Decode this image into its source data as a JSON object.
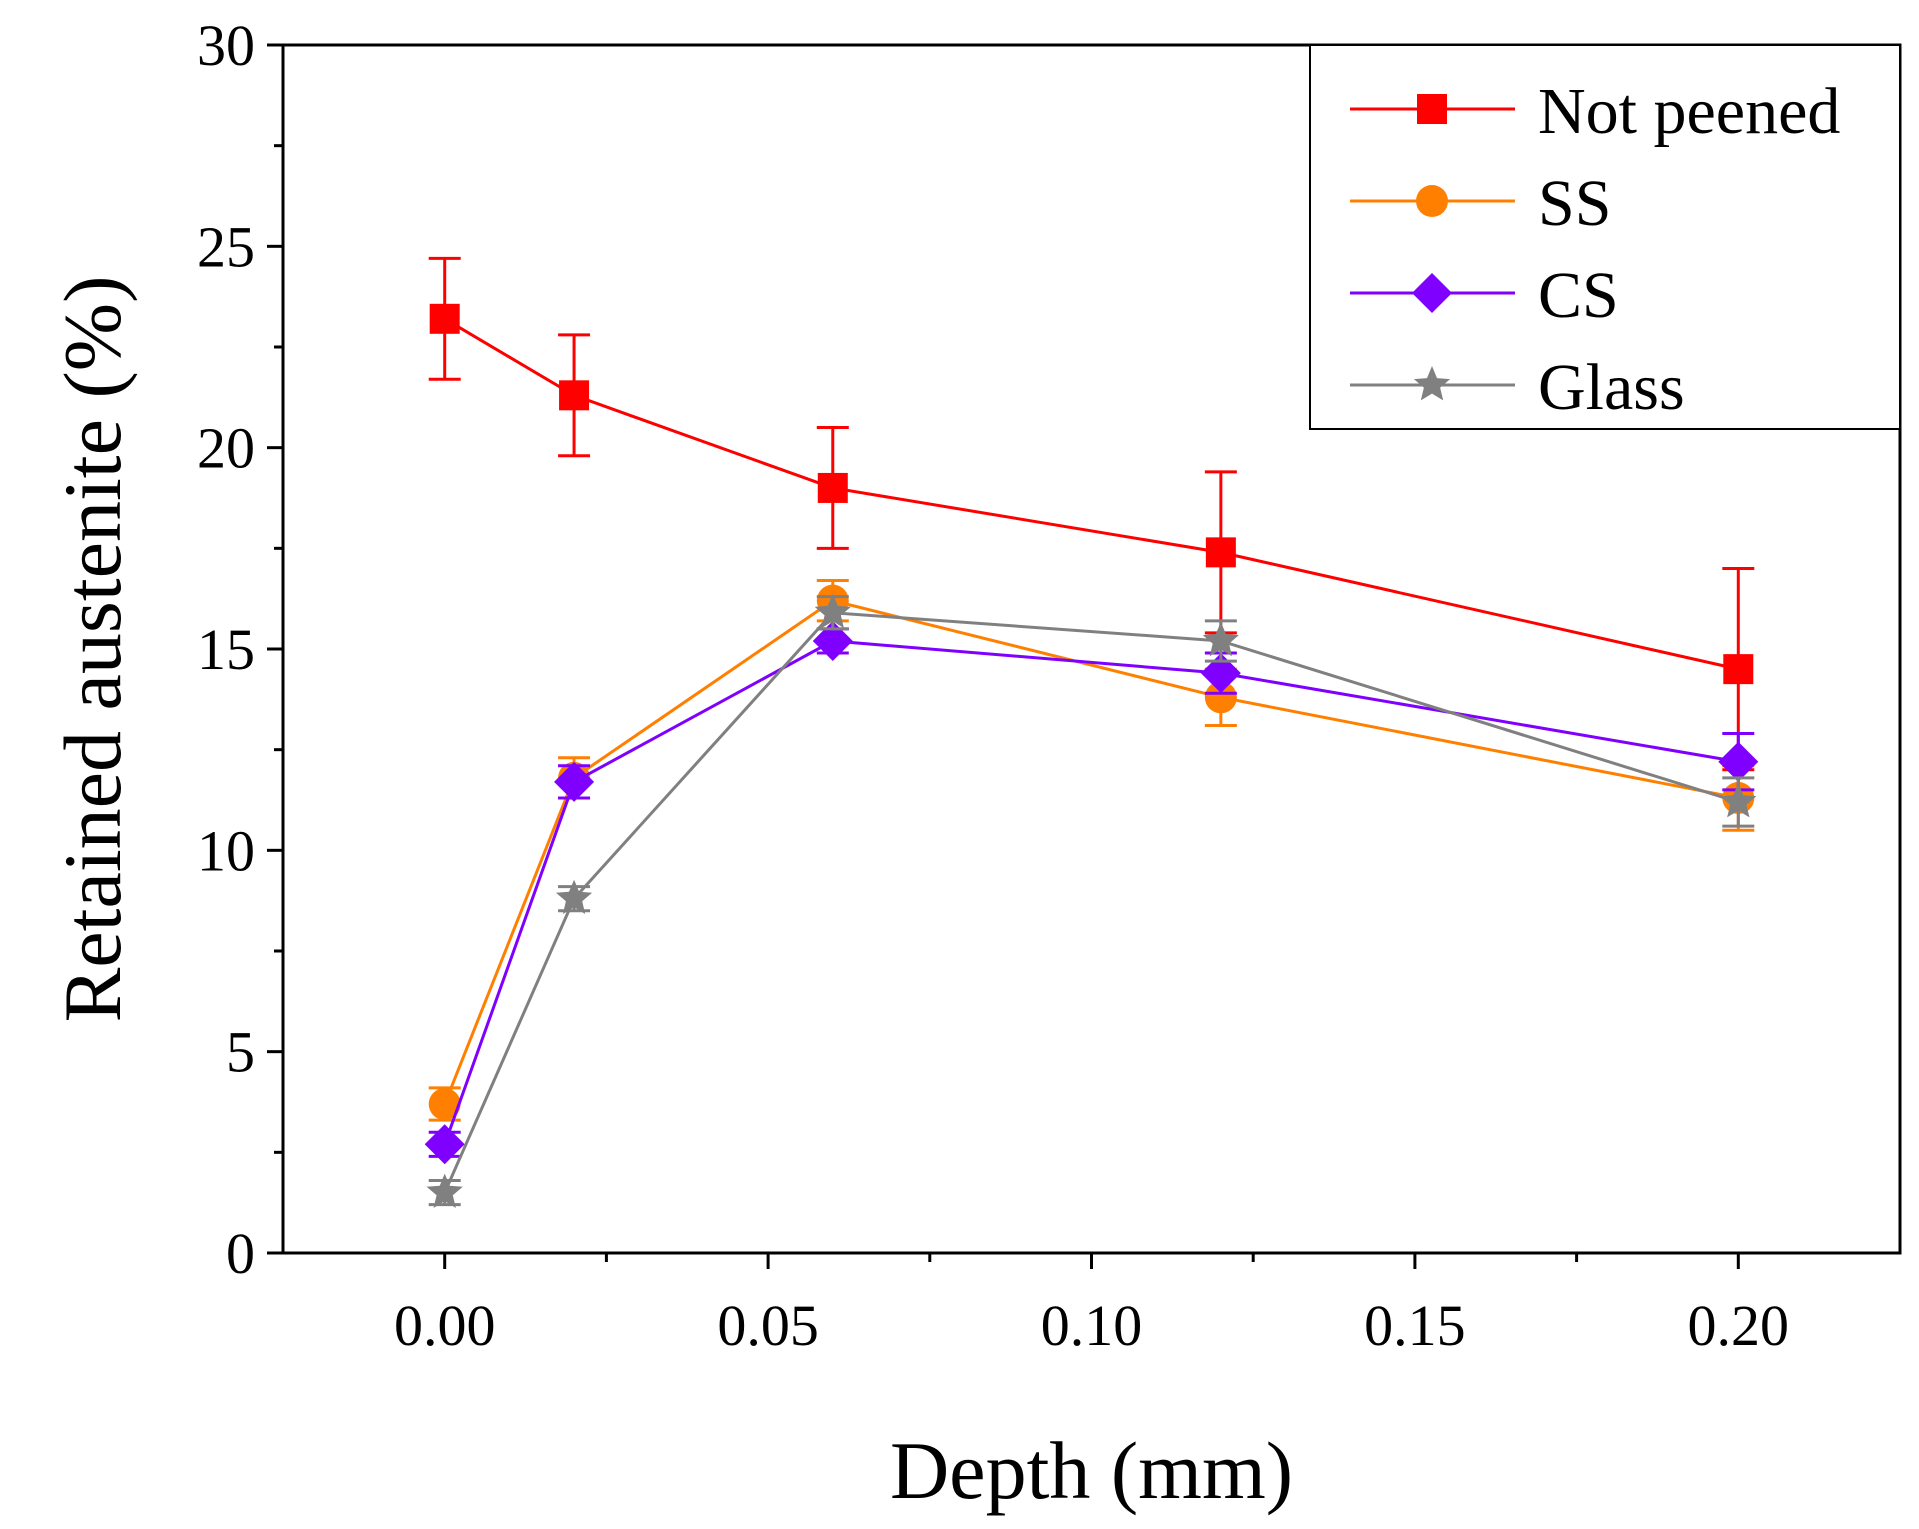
{
  "chart_data": {
    "type": "line",
    "title": "",
    "xlabel": "Depth (mm)",
    "ylabel": "Retained austenite (%)",
    "xlim": [
      -0.025,
      0.225
    ],
    "ylim": [
      0,
      30
    ],
    "xticks": [
      0.0,
      0.05,
      0.1,
      0.15,
      0.2
    ],
    "xtick_labels": [
      "0.00",
      "0.05",
      "0.10",
      "0.15",
      "0.20"
    ],
    "yticks": [
      0,
      5,
      10,
      15,
      20,
      25,
      30
    ],
    "ytick_labels": [
      "0",
      "5",
      "10",
      "15",
      "20",
      "25",
      "30"
    ],
    "grid": false,
    "legend_position": "top-right",
    "series": [
      {
        "name": "Not peened",
        "marker": "square",
        "color": "#ff0000",
        "x": [
          0.0,
          0.02,
          0.06,
          0.12,
          0.2
        ],
        "values": [
          23.2,
          21.3,
          19.0,
          17.4,
          14.5
        ],
        "errors": [
          1.5,
          1.5,
          1.5,
          2.0,
          2.5
        ]
      },
      {
        "name": "SS",
        "marker": "circle",
        "color": "#ff8000",
        "x": [
          0.0,
          0.02,
          0.06,
          0.12,
          0.2
        ],
        "values": [
          3.7,
          11.8,
          16.2,
          13.8,
          11.3
        ],
        "errors": [
          0.4,
          0.5,
          0.5,
          0.7,
          0.8
        ]
      },
      {
        "name": "CS",
        "marker": "diamond",
        "color": "#8000ff",
        "x": [
          0.0,
          0.02,
          0.06,
          0.12,
          0.2
        ],
        "values": [
          2.7,
          11.7,
          15.2,
          14.4,
          12.2
        ],
        "errors": [
          0.3,
          0.4,
          0.3,
          0.5,
          0.7
        ]
      },
      {
        "name": "Glass",
        "marker": "star",
        "color": "#808080",
        "x": [
          0.0,
          0.02,
          0.06,
          0.12,
          0.2
        ],
        "values": [
          1.5,
          8.8,
          15.9,
          15.2,
          11.2
        ],
        "errors": [
          0.3,
          0.3,
          0.4,
          0.5,
          0.6
        ]
      }
    ]
  }
}
